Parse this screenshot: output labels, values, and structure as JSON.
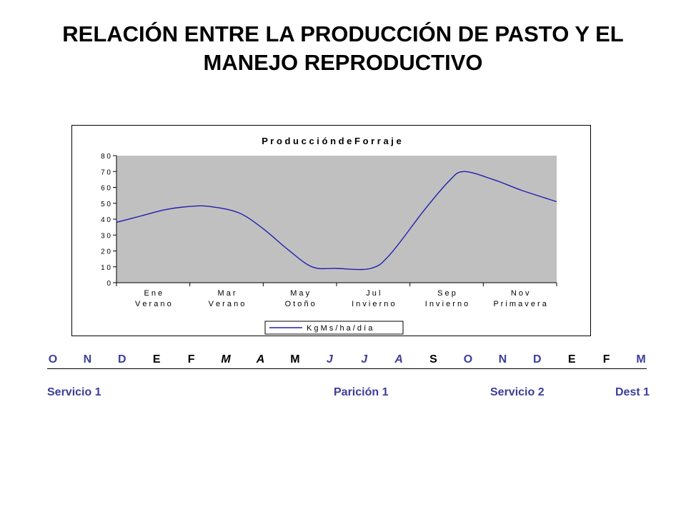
{
  "page": {
    "title_line1": "RELACIÓN ENTRE LA PRODUCCIÓN DE PASTO Y EL",
    "title_line2": "MANEJO REPRODUCTIVO"
  },
  "colors": {
    "plot_bg": "#c0c0c0",
    "series_line": "#1f1fb0",
    "blue_text": "#3d3d9b",
    "black_text": "#000000"
  },
  "chart_data": {
    "type": "line",
    "title": "P r o d u c c i ó n   d e   F o r r a j e",
    "ylim": [
      0,
      80
    ],
    "yticks": [
      "0",
      "1 0",
      "2 0",
      "3 0",
      "4 0",
      "5 0",
      "6 0",
      "7 0",
      "8 0"
    ],
    "grid": false,
    "legend_position": "bottom",
    "categories": [
      [
        "E n e",
        "V e r a n o"
      ],
      [
        "M a r",
        "V e r a n o"
      ],
      [
        "M a y",
        "O t o ñ o"
      ],
      [
        "J u l",
        "I n v i e r n o"
      ],
      [
        "S e p",
        "I n v i e r n o"
      ],
      [
        "N o v",
        "P r i m a v e r a"
      ]
    ],
    "series": [
      {
        "name": "K g   M s / h a / d í a",
        "values": [
          38,
          42,
          46,
          48,
          48,
          44,
          34,
          21,
          10,
          9,
          9,
          18,
          46,
          64,
          70,
          65,
          58,
          51
        ],
        "x": [
          0,
          0.5,
          1,
          1.5,
          1.9,
          2.5,
          3,
          3.5,
          4,
          4.5,
          5.2,
          5.6,
          6.3,
          6.8,
          7.1,
          7.7,
          8.3,
          9.0
        ]
      }
    ],
    "xlim": [
      0,
      9.0
    ]
  },
  "timeline": {
    "months": [
      {
        "label": "O",
        "color": "blue",
        "italic": false
      },
      {
        "label": "N",
        "color": "blue",
        "italic": false
      },
      {
        "label": "D",
        "color": "blue",
        "italic": false
      },
      {
        "label": "E",
        "color": "black",
        "italic": false
      },
      {
        "label": "F",
        "color": "black",
        "italic": false
      },
      {
        "label": "M",
        "color": "black",
        "italic": true
      },
      {
        "label": "A",
        "color": "black",
        "italic": true
      },
      {
        "label": "M",
        "color": "black",
        "italic": false
      },
      {
        "label": "J",
        "color": "blue",
        "italic": true
      },
      {
        "label": "J",
        "color": "blue",
        "italic": true
      },
      {
        "label": "A",
        "color": "blue",
        "italic": true
      },
      {
        "label": "S",
        "color": "black",
        "italic": false
      },
      {
        "label": "O",
        "color": "blue",
        "italic": false
      },
      {
        "label": "N",
        "color": "blue",
        "italic": false
      },
      {
        "label": "D",
        "color": "blue",
        "italic": false
      },
      {
        "label": "E",
        "color": "black",
        "italic": false
      },
      {
        "label": "F",
        "color": "black",
        "italic": false
      },
      {
        "label": "M",
        "color": "blue",
        "italic": false
      }
    ],
    "events": [
      {
        "label": "Servicio 1"
      },
      {
        "label": "Parición 1"
      },
      {
        "label": "Servicio 2"
      },
      {
        "label": "Dest 1"
      }
    ]
  }
}
